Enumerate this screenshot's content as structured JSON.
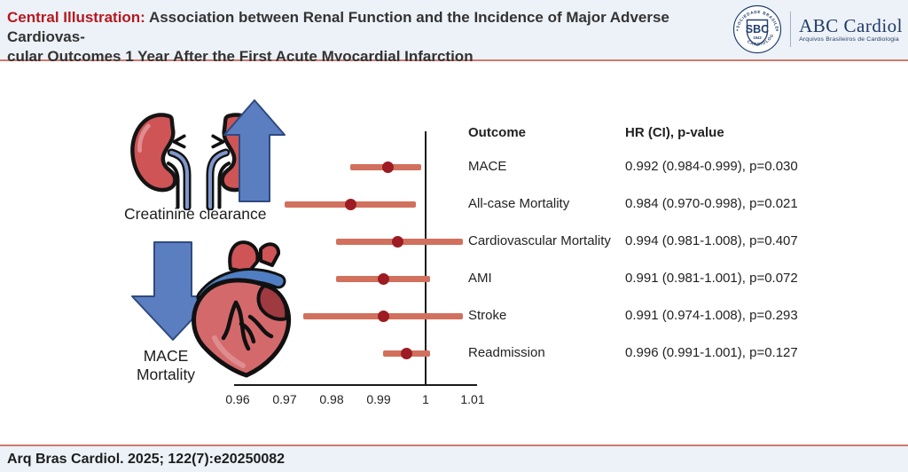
{
  "header": {
    "label": "Central Illustration:",
    "title_line1": "Association between Renal Function and the Incidence of Major Adverse Cardiovas-",
    "title_line2": "cular Outcomes 1 Year After the First Acute Myocardial Infarction",
    "accent_color": "#b5191f"
  },
  "logo": {
    "badge_center": "SBC",
    "badge_year": "1943",
    "badge_ring_top": "SOCIEDADE BRASILEIRA DE",
    "badge_ring_bottom": "CARDIOLOGIA",
    "wordmark": "ABC Cardiol",
    "wordmark_sub": "Arquivos Brasileiros de Cardiologia",
    "navy": "#21406e"
  },
  "illustration": {
    "kidney_label": "Creatinine clearance",
    "heart_label_line1": "MACE",
    "heart_label_line2": "Mortality"
  },
  "chart_data": {
    "type": "forest",
    "x_min": 0.96,
    "x_max": 1.01,
    "reference_line": 1,
    "x_ticks": [
      0.96,
      0.97,
      0.98,
      0.99,
      1,
      1.01
    ],
    "x_tick_labels": [
      "0.96",
      "0.97",
      "0.98",
      "0.99",
      "1",
      "1.01"
    ],
    "columns": {
      "outcome_header": "Outcome",
      "hr_header": "HR (CI), p-value"
    },
    "rows": [
      {
        "outcome": "MACE",
        "hr": 0.992,
        "ci_low": 0.984,
        "ci_high": 0.999,
        "p": "0.030",
        "hr_text": "0.992 (0.984-0.999), p=0.030"
      },
      {
        "outcome": "All-case Mortality",
        "hr": 0.984,
        "ci_low": 0.97,
        "ci_high": 0.998,
        "p": "0.021",
        "hr_text": "0.984 (0.970-0.998), p=0.021"
      },
      {
        "outcome": "Cardiovascular Mortality",
        "hr": 0.994,
        "ci_low": 0.981,
        "ci_high": 1.008,
        "p": "0.407",
        "hr_text": "0.994 (0.981-1.008), p=0.407"
      },
      {
        "outcome": "AMI",
        "hr": 0.991,
        "ci_low": 0.981,
        "ci_high": 1.001,
        "p": "0.072",
        "hr_text": "0.991 (0.981-1.001), p=0.072"
      },
      {
        "outcome": "Stroke",
        "hr": 0.991,
        "ci_low": 0.974,
        "ci_high": 1.008,
        "p": "0.293",
        "hr_text": "0.991 (0.974-1.008), p=0.293"
      },
      {
        "outcome": "Readmission",
        "hr": 0.996,
        "ci_low": 0.991,
        "ci_high": 1.001,
        "p": "0.127",
        "hr_text": "0.996 (0.991-1.001), p=0.127"
      }
    ],
    "colors": {
      "bar": "#d2705e",
      "dot": "#9d1b22",
      "axis": "#1a1a1a"
    }
  },
  "footer": {
    "citation": "Arq Bras Cardiol. 2025; 122(7):e20250082"
  }
}
